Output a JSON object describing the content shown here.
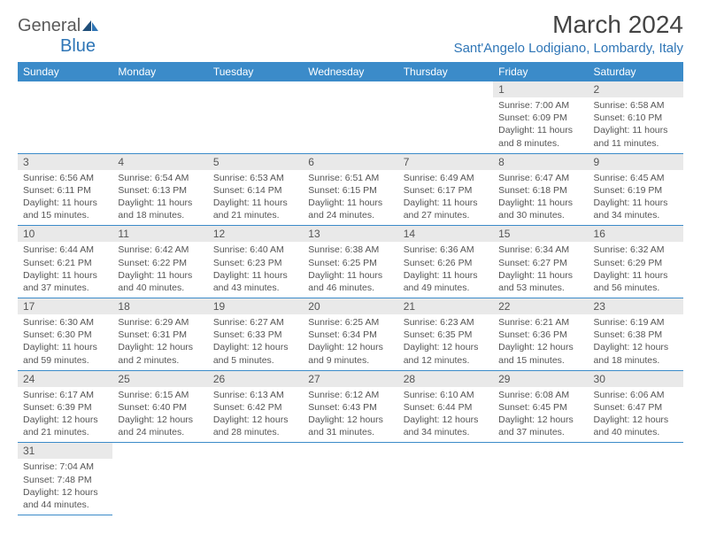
{
  "brand": {
    "part1": "General",
    "part2": "Blue"
  },
  "title": "March 2024",
  "location": "Sant'Angelo Lodigiano, Lombardy, Italy",
  "colors": {
    "header_bg": "#3b8bc9",
    "header_text": "#ffffff",
    "daynum_bg": "#e9e9e9",
    "border": "#3b8bc9",
    "brand_blue": "#2e75b6",
    "text": "#555555"
  },
  "typography": {
    "title_fontsize": 28,
    "location_fontsize": 15,
    "header_fontsize": 12,
    "daynum_fontsize": 12,
    "data_fontsize": 10.5
  },
  "daysOfWeek": [
    "Sunday",
    "Monday",
    "Tuesday",
    "Wednesday",
    "Thursday",
    "Friday",
    "Saturday"
  ],
  "startWeekday": 5,
  "daysInMonth": 31,
  "days": {
    "1": {
      "sunrise": "7:00 AM",
      "sunset": "6:09 PM",
      "daylight": "11 hours and 8 minutes."
    },
    "2": {
      "sunrise": "6:58 AM",
      "sunset": "6:10 PM",
      "daylight": "11 hours and 11 minutes."
    },
    "3": {
      "sunrise": "6:56 AM",
      "sunset": "6:11 PM",
      "daylight": "11 hours and 15 minutes."
    },
    "4": {
      "sunrise": "6:54 AM",
      "sunset": "6:13 PM",
      "daylight": "11 hours and 18 minutes."
    },
    "5": {
      "sunrise": "6:53 AM",
      "sunset": "6:14 PM",
      "daylight": "11 hours and 21 minutes."
    },
    "6": {
      "sunrise": "6:51 AM",
      "sunset": "6:15 PM",
      "daylight": "11 hours and 24 minutes."
    },
    "7": {
      "sunrise": "6:49 AM",
      "sunset": "6:17 PM",
      "daylight": "11 hours and 27 minutes."
    },
    "8": {
      "sunrise": "6:47 AM",
      "sunset": "6:18 PM",
      "daylight": "11 hours and 30 minutes."
    },
    "9": {
      "sunrise": "6:45 AM",
      "sunset": "6:19 PM",
      "daylight": "11 hours and 34 minutes."
    },
    "10": {
      "sunrise": "6:44 AM",
      "sunset": "6:21 PM",
      "daylight": "11 hours and 37 minutes."
    },
    "11": {
      "sunrise": "6:42 AM",
      "sunset": "6:22 PM",
      "daylight": "11 hours and 40 minutes."
    },
    "12": {
      "sunrise": "6:40 AM",
      "sunset": "6:23 PM",
      "daylight": "11 hours and 43 minutes."
    },
    "13": {
      "sunrise": "6:38 AM",
      "sunset": "6:25 PM",
      "daylight": "11 hours and 46 minutes."
    },
    "14": {
      "sunrise": "6:36 AM",
      "sunset": "6:26 PM",
      "daylight": "11 hours and 49 minutes."
    },
    "15": {
      "sunrise": "6:34 AM",
      "sunset": "6:27 PM",
      "daylight": "11 hours and 53 minutes."
    },
    "16": {
      "sunrise": "6:32 AM",
      "sunset": "6:29 PM",
      "daylight": "11 hours and 56 minutes."
    },
    "17": {
      "sunrise": "6:30 AM",
      "sunset": "6:30 PM",
      "daylight": "11 hours and 59 minutes."
    },
    "18": {
      "sunrise": "6:29 AM",
      "sunset": "6:31 PM",
      "daylight": "12 hours and 2 minutes."
    },
    "19": {
      "sunrise": "6:27 AM",
      "sunset": "6:33 PM",
      "daylight": "12 hours and 5 minutes."
    },
    "20": {
      "sunrise": "6:25 AM",
      "sunset": "6:34 PM",
      "daylight": "12 hours and 9 minutes."
    },
    "21": {
      "sunrise": "6:23 AM",
      "sunset": "6:35 PM",
      "daylight": "12 hours and 12 minutes."
    },
    "22": {
      "sunrise": "6:21 AM",
      "sunset": "6:36 PM",
      "daylight": "12 hours and 15 minutes."
    },
    "23": {
      "sunrise": "6:19 AM",
      "sunset": "6:38 PM",
      "daylight": "12 hours and 18 minutes."
    },
    "24": {
      "sunrise": "6:17 AM",
      "sunset": "6:39 PM",
      "daylight": "12 hours and 21 minutes."
    },
    "25": {
      "sunrise": "6:15 AM",
      "sunset": "6:40 PM",
      "daylight": "12 hours and 24 minutes."
    },
    "26": {
      "sunrise": "6:13 AM",
      "sunset": "6:42 PM",
      "daylight": "12 hours and 28 minutes."
    },
    "27": {
      "sunrise": "6:12 AM",
      "sunset": "6:43 PM",
      "daylight": "12 hours and 31 minutes."
    },
    "28": {
      "sunrise": "6:10 AM",
      "sunset": "6:44 PM",
      "daylight": "12 hours and 34 minutes."
    },
    "29": {
      "sunrise": "6:08 AM",
      "sunset": "6:45 PM",
      "daylight": "12 hours and 37 minutes."
    },
    "30": {
      "sunrise": "6:06 AM",
      "sunset": "6:47 PM",
      "daylight": "12 hours and 40 minutes."
    },
    "31": {
      "sunrise": "7:04 AM",
      "sunset": "7:48 PM",
      "daylight": "12 hours and 44 minutes."
    }
  },
  "labels": {
    "sunrise": "Sunrise:",
    "sunset": "Sunset:",
    "daylight": "Daylight:"
  }
}
